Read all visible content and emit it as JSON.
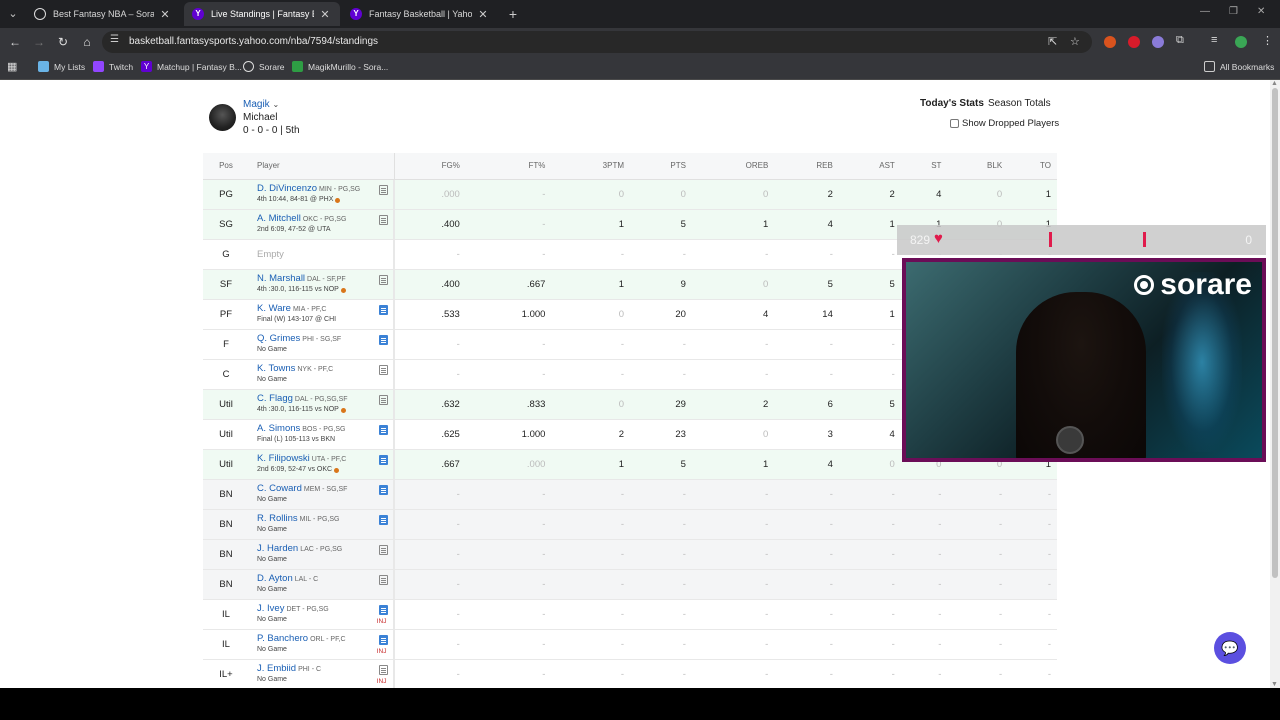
{
  "browser": {
    "tabs": [
      {
        "title": "Best Fantasy NBA – Sorare NBA",
        "favicon": "sorare-icon",
        "active": false
      },
      {
        "title": "Live Standings | Fantasy Basketb…",
        "favicon": "yahoo-icon",
        "active": true
      },
      {
        "title": "Fantasy Basketball | Yahoo! Spo…",
        "favicon": "yahoo-icon",
        "active": false
      }
    ],
    "url": "basketball.fantasysports.yahoo.com/nba/7594/standings",
    "bookmarks": [
      "My Lists",
      "Twitch",
      "Matchup | Fantasy B...",
      "Sorare",
      "MagikMurillo - Sora..."
    ],
    "all_bookmarks": "All Bookmarks"
  },
  "team": {
    "name": "Magik",
    "owner": "Michael",
    "record": "0 - 0 - 0 | 5th"
  },
  "view_tabs": {
    "today": "Today's Stats",
    "season": "Season Totals"
  },
  "show_dropped": "Show Dropped Players",
  "columns": [
    "Pos",
    "Player",
    "FG%",
    "FT%",
    "3PTM",
    "PTS",
    "OREB",
    "REB",
    "AST",
    "ST",
    "BLK",
    "TO"
  ],
  "players": [
    {
      "pos": "PG",
      "name": "D. DiVincenzo",
      "team": "MIN - PG,SG",
      "game": "4th 10:44, 84-81 @ PHX",
      "live": true,
      "note": "plain",
      "inj": "",
      "status": "played",
      "stats": [
        ".000",
        "-",
        "0",
        "0",
        "0",
        "2",
        "2",
        "4",
        "0",
        "1"
      ],
      "dim": [
        true,
        false,
        true,
        true,
        true,
        false,
        false,
        false,
        true,
        false
      ]
    },
    {
      "pos": "SG",
      "name": "A. Mitchell",
      "team": "OKC - PG,SG",
      "game": "2nd 6:09, 47-52 @ UTA",
      "live": false,
      "note": "plain",
      "inj": "",
      "status": "played",
      "stats": [
        ".400",
        "-",
        "1",
        "5",
        "1",
        "4",
        "1",
        "1",
        "0",
        "1"
      ],
      "dim": [
        false,
        false,
        false,
        false,
        false,
        false,
        false,
        false,
        true,
        false
      ]
    },
    {
      "pos": "G",
      "name": "",
      "empty": "Empty",
      "team": "",
      "game": "",
      "live": false,
      "note": "",
      "inj": "",
      "status": "empty",
      "stats": [
        "-",
        "-",
        "-",
        "-",
        "-",
        "-",
        "-",
        "-",
        "-",
        "-"
      ],
      "dim": []
    },
    {
      "pos": "SF",
      "name": "N. Marshall",
      "team": "DAL - SF,PF",
      "game": "4th :30.0, 116-115 vs NOP",
      "live": true,
      "note": "plain",
      "inj": "",
      "status": "played",
      "stats": [
        ".400",
        ".667",
        "1",
        "9",
        "0",
        "5",
        "5",
        "",
        "",
        ""
      ],
      "dim": [
        false,
        false,
        false,
        false,
        true,
        false,
        false,
        false,
        false,
        false
      ]
    },
    {
      "pos": "PF",
      "name": "K. Ware",
      "team": "MIA - PF,C",
      "game": "Final (W) 143-107 @ CHI",
      "live": false,
      "note": "blue",
      "inj": "",
      "status": "final",
      "stats": [
        ".533",
        "1.000",
        "0",
        "20",
        "4",
        "14",
        "1",
        "",
        "",
        ""
      ],
      "dim": [
        false,
        false,
        true,
        false,
        false,
        false,
        false,
        false,
        false,
        false
      ]
    },
    {
      "pos": "F",
      "name": "Q. Grimes",
      "team": "PHI - SG,SF",
      "game": "No Game",
      "live": false,
      "note": "blue",
      "inj": "",
      "status": "nogame",
      "stats": [
        "-",
        "-",
        "-",
        "-",
        "-",
        "-",
        "-",
        "",
        "",
        ""
      ],
      "dim": []
    },
    {
      "pos": "C",
      "name": "K. Towns",
      "team": "NYK - PF,C",
      "game": "No Game",
      "live": false,
      "note": "plain",
      "inj": "",
      "status": "nogame",
      "stats": [
        "-",
        "-",
        "-",
        "-",
        "-",
        "-",
        "-",
        "",
        "",
        ""
      ],
      "dim": []
    },
    {
      "pos": "Util",
      "name": "C. Flagg",
      "team": "DAL - PG,SG,SF",
      "game": "4th :30.0, 116-115 vs NOP",
      "live": true,
      "note": "plain",
      "inj": "",
      "status": "played",
      "stats": [
        ".632",
        ".833",
        "0",
        "29",
        "2",
        "6",
        "5",
        "",
        "",
        ""
      ],
      "dim": [
        false,
        false,
        true,
        false,
        false,
        false,
        false,
        false,
        false,
        false
      ]
    },
    {
      "pos": "Util",
      "name": "A. Simons",
      "team": "BOS - PG,SG",
      "game": "Final (L) 105-113 vs BKN",
      "live": false,
      "note": "blue",
      "inj": "",
      "status": "final",
      "stats": [
        ".625",
        "1.000",
        "2",
        "23",
        "0",
        "3",
        "4",
        "",
        "",
        ""
      ],
      "dim": [
        false,
        false,
        false,
        false,
        true,
        false,
        false,
        false,
        false,
        false
      ]
    },
    {
      "pos": "Util",
      "name": "K. Filipowski",
      "team": "UTA - PF,C",
      "game": "2nd 6:09, 52-47 vs OKC",
      "live": true,
      "note": "blue",
      "inj": "",
      "status": "played",
      "stats": [
        ".667",
        ".000",
        "1",
        "5",
        "1",
        "4",
        "0",
        "0",
        "0",
        "1"
      ],
      "dim": [
        false,
        true,
        false,
        false,
        false,
        false,
        true,
        true,
        true,
        false
      ]
    },
    {
      "pos": "BN",
      "name": "C. Coward",
      "team": "MEM - SG,SF",
      "game": "No Game",
      "live": false,
      "note": "blue",
      "inj": "",
      "status": "bench",
      "stats": [
        "-",
        "-",
        "-",
        "-",
        "-",
        "-",
        "-",
        "-",
        "-",
        "-"
      ],
      "dim": []
    },
    {
      "pos": "BN",
      "name": "R. Rollins",
      "team": "MIL - PG,SG",
      "game": "No Game",
      "live": false,
      "note": "blue",
      "inj": "",
      "status": "bench",
      "stats": [
        "-",
        "-",
        "-",
        "-",
        "-",
        "-",
        "-",
        "-",
        "-",
        "-"
      ],
      "dim": []
    },
    {
      "pos": "BN",
      "name": "J. Harden",
      "team": "LAC - PG,SG",
      "game": "No Game",
      "live": false,
      "note": "plain",
      "inj": "",
      "status": "bench",
      "stats": [
        "-",
        "-",
        "-",
        "-",
        "-",
        "-",
        "-",
        "-",
        "-",
        "-"
      ],
      "dim": []
    },
    {
      "pos": "BN",
      "name": "D. Ayton",
      "team": "LAL - C",
      "game": "No Game",
      "live": false,
      "note": "plain",
      "inj": "",
      "status": "bench",
      "stats": [
        "-",
        "-",
        "-",
        "-",
        "-",
        "-",
        "-",
        "-",
        "-",
        "-"
      ],
      "dim": []
    },
    {
      "pos": "IL",
      "name": "J. Ivey",
      "team": "DET - PG,SG",
      "game": "No Game",
      "live": false,
      "note": "blue",
      "inj": "INJ",
      "status": "nogame",
      "stats": [
        "-",
        "-",
        "-",
        "-",
        "-",
        "-",
        "-",
        "-",
        "-",
        "-"
      ],
      "dim": []
    },
    {
      "pos": "IL",
      "name": "P. Banchero",
      "team": "ORL - PF,C",
      "game": "No Game",
      "live": false,
      "note": "blue",
      "inj": "INJ",
      "status": "nogame",
      "stats": [
        "-",
        "-",
        "-",
        "-",
        "-",
        "-",
        "-",
        "-",
        "-",
        "-"
      ],
      "dim": []
    },
    {
      "pos": "IL+",
      "name": "J. Embiid",
      "team": "PHI - C",
      "game": "No Game",
      "live": false,
      "note": "plain",
      "inj": "INJ",
      "status": "nogame",
      "stats": [
        "-",
        "-",
        "-",
        "-",
        "-",
        "-",
        "-",
        "-",
        "-",
        "-"
      ],
      "dim": []
    }
  ],
  "overlay": {
    "goal_count": "829",
    "goal_end": "0",
    "brand": "sorare"
  },
  "colors": {
    "accent": "#1a5fb4",
    "played_row": "#f0faf3",
    "live_dot": "#d9761a",
    "yahoo": "#6001d2",
    "overlay_heart": "#e01b4c"
  }
}
